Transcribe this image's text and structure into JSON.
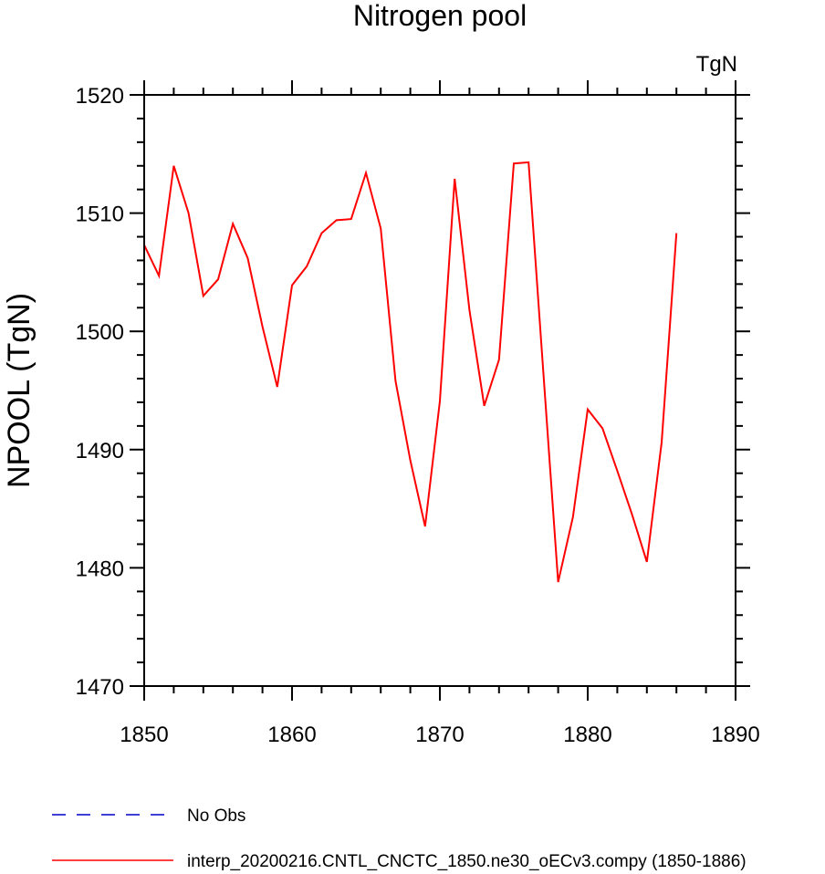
{
  "chart_data": {
    "type": "line",
    "title": "Nitrogen pool",
    "units_label": "TgN",
    "ylabel": "NPOOL  (TgN)",
    "xlabel": "",
    "xlim": [
      1850,
      1890
    ],
    "ylim": [
      1470,
      1520
    ],
    "x_ticks": [
      1850,
      1860,
      1870,
      1880,
      1890
    ],
    "y_ticks": [
      1470,
      1480,
      1490,
      1500,
      1510,
      1520
    ],
    "x_minor_step": 2,
    "y_minor_step": 2,
    "grid": false,
    "legend_placement": "bottom-left",
    "series": [
      {
        "name": "No Obs",
        "color": "#0000cc",
        "dash": "dashed",
        "x": [],
        "values": []
      },
      {
        "name": "interp_20200216.CNTL_CNCTC_1850.ne30_oECv3.compy (1850-1886)",
        "color": "#ff0000",
        "dash": "solid",
        "x": [
          1850,
          1851,
          1852,
          1853,
          1854,
          1855,
          1856,
          1857,
          1858,
          1859,
          1860,
          1861,
          1862,
          1863,
          1864,
          1865,
          1866,
          1867,
          1868,
          1869,
          1870,
          1871,
          1872,
          1873,
          1874,
          1875,
          1876,
          1877,
          1878,
          1879,
          1880,
          1881,
          1882,
          1883,
          1884,
          1885,
          1886
        ],
        "values": [
          1507.3,
          1504.7,
          1514.0,
          1510.0,
          1503.0,
          1504.4,
          1509.1,
          1506.2,
          1500.4,
          1495.3,
          1503.9,
          1505.5,
          1508.3,
          1509.4,
          1509.5,
          1513.4,
          1508.7,
          1495.8,
          1489.1,
          1483.5,
          1494.1,
          1512.9,
          1501.8,
          1493.7,
          1497.6,
          1514.2,
          1514.3,
          1496.5,
          1478.8,
          1484.3,
          1493.4,
          1491.8,
          1488.2,
          1484.5,
          1480.5,
          1490.6,
          1508.3
        ]
      }
    ]
  }
}
